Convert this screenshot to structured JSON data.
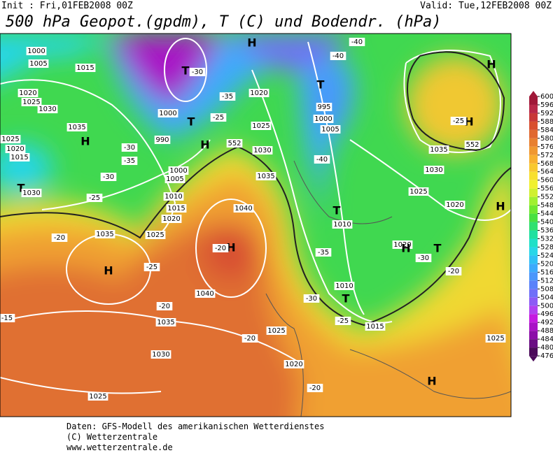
{
  "header": {
    "init": "Init : Fri,01FEB2008 00Z",
    "valid": "Valid: Tue,12FEB2008 00Z",
    "title": "500 hPa Geopot.(gpdm), T (C) und Bodendr. (hPa)"
  },
  "map_labels": [
    "1000",
    "1005",
    "1015",
    "1020",
    "1025",
    "1030",
    "1035",
    "H",
    "1025",
    "1020",
    "1015",
    "T",
    "1030",
    "-20",
    "1035",
    "H",
    "-25",
    "-15",
    "1030",
    "1025",
    "1035",
    "-20",
    "1040",
    "H",
    "-20",
    "1040",
    "T",
    "T",
    "H",
    "1000",
    "990",
    "1000",
    "1005",
    "1010",
    "1015",
    "1020",
    "1025",
    "1020",
    "1025",
    "1030",
    "1035",
    "H",
    "T",
    "995",
    "1000",
    "1005",
    "-40",
    "T",
    "1010",
    "-35",
    "1010",
    "T",
    "-25",
    "-30",
    "1015",
    "1025",
    "-20",
    "1020",
    "-20",
    "1025",
    "1030",
    "1035",
    "H",
    "-25",
    "H",
    "1020",
    "1020",
    "H",
    "T",
    "-30",
    "-20",
    "H",
    "1025",
    "H",
    "-40",
    "-40",
    "-30",
    "-35",
    "-25",
    "-30",
    "-35",
    "-30",
    "-25",
    "552",
    "552"
  ],
  "colorbar": {
    "levels": [
      476,
      480,
      484,
      488,
      492,
      496,
      500,
      504,
      508,
      512,
      516,
      520,
      524,
      528,
      532,
      536,
      540,
      544,
      548,
      552,
      556,
      560,
      564,
      568,
      572,
      576,
      580,
      584,
      588,
      592,
      596,
      600
    ],
    "colors": [
      "#4b0a5a",
      "#6a0d83",
      "#8b0fa8",
      "#a812c6",
      "#c41ae0",
      "#b040f0",
      "#8c5af5",
      "#6f6ff8",
      "#5a82fa",
      "#4a96fb",
      "#3caafc",
      "#30c0f5",
      "#28d6e8",
      "#20e0c8",
      "#20e0a0",
      "#30e070",
      "#48e040",
      "#70e830",
      "#a0f030",
      "#d0f030",
      "#f0f030",
      "#f8e030",
      "#f8c830",
      "#f8b030",
      "#f09830",
      "#e88030",
      "#e06830",
      "#d85030",
      "#c83838",
      "#b82848",
      "#a01838"
    ]
  },
  "footer": [
    "Daten: GFS-Modell des amerikanischen Wetterdienstes",
    "(C) Wetterzentrale",
    "www.wetterzentrale.de"
  ]
}
